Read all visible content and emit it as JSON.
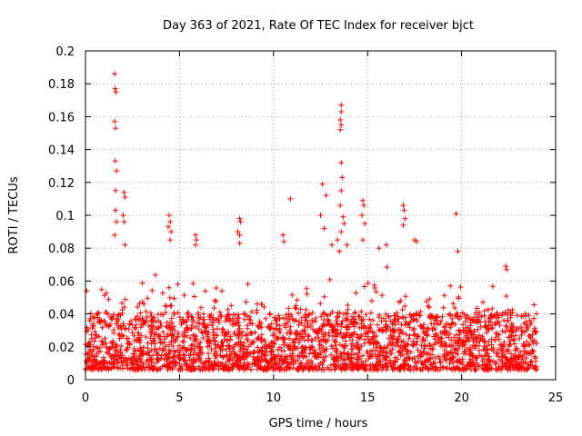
{
  "chart_data": {
    "type": "scatter",
    "title": "Day 363 of 2021, Rate Of TEC Index for receiver bjct",
    "xlabel": "GPS time / hours",
    "ylabel": "ROTI / TECUs",
    "xlim": [
      0,
      25
    ],
    "ylim": [
      0,
      0.2
    ],
    "x_ticks": [
      0,
      5,
      10,
      15,
      20,
      25
    ],
    "x_tick_labels": [
      "0",
      "5",
      "10",
      "15",
      "20",
      "25"
    ],
    "y_ticks": [
      0,
      0.02,
      0.04,
      0.06,
      0.08,
      0.1,
      0.12,
      0.14,
      0.16,
      0.18,
      0.2
    ],
    "y_tick_labels": [
      "0",
      "0.02",
      "0.04",
      "0.06",
      "0.08",
      "0.1",
      "0.12",
      "0.14",
      "0.16",
      "0.18",
      "0.2"
    ],
    "grid": true,
    "marker": "+",
    "color": "#ff0000",
    "data_range_hours": [
      0,
      24
    ],
    "band_mean_upper": 0.035,
    "band_min": 0.006,
    "point_count": 2600,
    "series": [
      {
        "name": "ROTI",
        "notable_points": [
          {
            "x": 1.55,
            "y": 0.186
          },
          {
            "x": 1.58,
            "y": 0.177
          },
          {
            "x": 1.62,
            "y": 0.175
          },
          {
            "x": 1.55,
            "y": 0.157
          },
          {
            "x": 1.6,
            "y": 0.153
          },
          {
            "x": 1.58,
            "y": 0.133
          },
          {
            "x": 1.65,
            "y": 0.127
          },
          {
            "x": 1.6,
            "y": 0.115
          },
          {
            "x": 2.05,
            "y": 0.114
          },
          {
            "x": 2.1,
            "y": 0.111
          },
          {
            "x": 1.6,
            "y": 0.103
          },
          {
            "x": 2.0,
            "y": 0.1
          },
          {
            "x": 1.65,
            "y": 0.096
          },
          {
            "x": 2.05,
            "y": 0.096
          },
          {
            "x": 1.55,
            "y": 0.088
          },
          {
            "x": 2.1,
            "y": 0.082
          },
          {
            "x": 4.45,
            "y": 0.1
          },
          {
            "x": 4.5,
            "y": 0.096
          },
          {
            "x": 4.4,
            "y": 0.093
          },
          {
            "x": 4.55,
            "y": 0.09
          },
          {
            "x": 4.5,
            "y": 0.085
          },
          {
            "x": 5.85,
            "y": 0.088
          },
          {
            "x": 5.9,
            "y": 0.085
          },
          {
            "x": 5.85,
            "y": 0.082
          },
          {
            "x": 8.2,
            "y": 0.098
          },
          {
            "x": 8.25,
            "y": 0.096
          },
          {
            "x": 8.1,
            "y": 0.09
          },
          {
            "x": 8.2,
            "y": 0.088
          },
          {
            "x": 8.2,
            "y": 0.083
          },
          {
            "x": 10.9,
            "y": 0.11
          },
          {
            "x": 10.5,
            "y": 0.088
          },
          {
            "x": 10.55,
            "y": 0.084
          },
          {
            "x": 12.6,
            "y": 0.119
          },
          {
            "x": 12.8,
            "y": 0.112
          },
          {
            "x": 12.5,
            "y": 0.1
          },
          {
            "x": 12.7,
            "y": 0.092
          },
          {
            "x": 13.1,
            "y": 0.082
          },
          {
            "x": 13.6,
            "y": 0.167
          },
          {
            "x": 13.6,
            "y": 0.163
          },
          {
            "x": 13.55,
            "y": 0.158
          },
          {
            "x": 13.6,
            "y": 0.155
          },
          {
            "x": 13.55,
            "y": 0.152
          },
          {
            "x": 13.6,
            "y": 0.132
          },
          {
            "x": 13.65,
            "y": 0.123
          },
          {
            "x": 13.6,
            "y": 0.115
          },
          {
            "x": 13.55,
            "y": 0.106
          },
          {
            "x": 13.7,
            "y": 0.099
          },
          {
            "x": 13.75,
            "y": 0.095
          },
          {
            "x": 13.6,
            "y": 0.09
          },
          {
            "x": 13.4,
            "y": 0.085
          },
          {
            "x": 13.9,
            "y": 0.082
          },
          {
            "x": 13.5,
            "y": 0.078
          },
          {
            "x": 14.75,
            "y": 0.109
          },
          {
            "x": 14.8,
            "y": 0.106
          },
          {
            "x": 14.7,
            "y": 0.1
          },
          {
            "x": 14.85,
            "y": 0.095
          },
          {
            "x": 14.75,
            "y": 0.085
          },
          {
            "x": 16.0,
            "y": 0.082
          },
          {
            "x": 15.6,
            "y": 0.08
          },
          {
            "x": 16.9,
            "y": 0.106
          },
          {
            "x": 16.95,
            "y": 0.103
          },
          {
            "x": 17.0,
            "y": 0.098
          },
          {
            "x": 16.9,
            "y": 0.094
          },
          {
            "x": 17.5,
            "y": 0.085
          },
          {
            "x": 17.6,
            "y": 0.084
          },
          {
            "x": 19.7,
            "y": 0.101
          },
          {
            "x": 19.8,
            "y": 0.078
          },
          {
            "x": 22.35,
            "y": 0.069
          },
          {
            "x": 22.4,
            "y": 0.067
          }
        ]
      }
    ]
  }
}
